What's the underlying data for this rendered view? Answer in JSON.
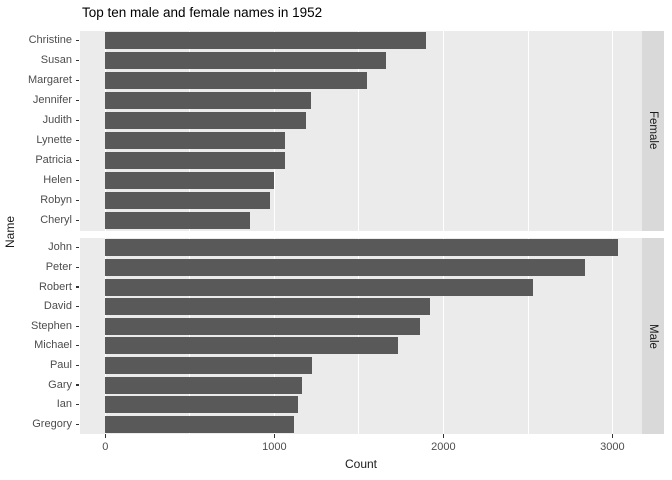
{
  "chart_data": {
    "type": "bar",
    "orientation": "horizontal",
    "title": "Top ten male and female names in 1952",
    "xlabel": "Count",
    "ylabel": "Name",
    "xlim": [
      -150,
      3175
    ],
    "x_ticks": [
      0,
      1000,
      2000,
      3000
    ],
    "x_minor_gridlines": [
      500,
      1500,
      2500
    ],
    "grid": "on",
    "legend": "none",
    "facets": [
      {
        "label": "Female",
        "categories": [
          "Christine",
          "Susan",
          "Margaret",
          "Jennifer",
          "Judith",
          "Lynette",
          "Patricia",
          "Helen",
          "Robyn",
          "Cheryl"
        ],
        "values": [
          1900,
          1660,
          1550,
          1215,
          1190,
          1065,
          1060,
          995,
          975,
          855
        ]
      },
      {
        "label": "Male",
        "categories": [
          "John",
          "Peter",
          "Robert",
          "David",
          "Stephen",
          "Michael",
          "Paul",
          "Gary",
          "Ian",
          "Gregory"
        ],
        "values": [
          3035,
          2840,
          2530,
          1920,
          1860,
          1730,
          1220,
          1165,
          1140,
          1115
        ]
      }
    ],
    "colors": {
      "bar": "#595959",
      "panel_bg": "#ebebeb",
      "gridline": "#ffffff",
      "strip_bg": "#d9d9d9",
      "strip_text": "#1a1a1a",
      "axis_text": "#4d4d4d",
      "title_text": "#000000",
      "tick_mark": "#333333"
    }
  }
}
